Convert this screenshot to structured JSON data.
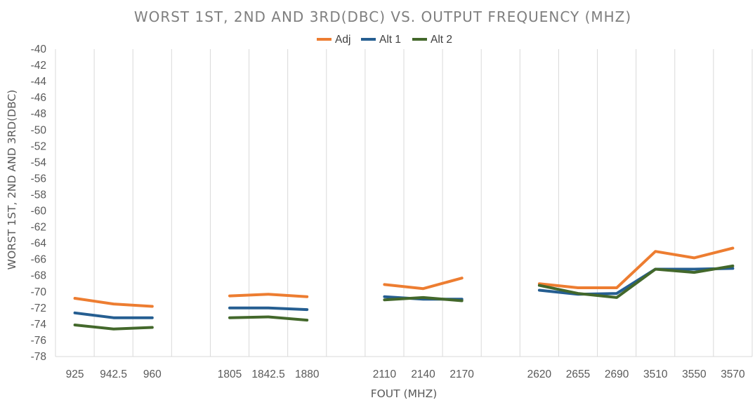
{
  "chart_data": {
    "type": "line",
    "title": "WORST 1ST, 2ND AND 3RD(DBC) VS. OUTPUT FREQUENCY (MHZ)",
    "xlabel": "FOUT (MHZ)",
    "ylabel": "WORST 1ST, 2ND AND 3RD(DBC)",
    "ylim": [
      -78,
      -40
    ],
    "yticks": [
      -40,
      -42,
      -44,
      -46,
      -48,
      -50,
      -52,
      -54,
      -56,
      -58,
      -60,
      -62,
      -64,
      -66,
      -68,
      -70,
      -72,
      -74,
      -76,
      -78
    ],
    "categories": [
      "925",
      "942.5",
      "960",
      "",
      "1805",
      "1842.5",
      "1880",
      "",
      "2110",
      "2140",
      "2170",
      "",
      "2620",
      "2655",
      "2690",
      "3510",
      "3550",
      "3570"
    ],
    "legend_position": "top",
    "grid": {
      "vertical": true,
      "horizontal": false
    },
    "series": [
      {
        "name": "Adj",
        "color": "#ed7d31",
        "values": [
          -70.8,
          -71.5,
          -71.8,
          null,
          -70.5,
          -70.3,
          -70.6,
          null,
          -69.1,
          -69.6,
          -68.3,
          null,
          -69.0,
          -69.5,
          -69.5,
          -65.0,
          -65.8,
          -64.6
        ]
      },
      {
        "name": "Alt 1",
        "color": "#255e91",
        "values": [
          -72.6,
          -73.2,
          -73.2,
          null,
          -72.0,
          -72.0,
          -72.2,
          null,
          -70.6,
          -70.9,
          -70.9,
          null,
          -69.8,
          -70.3,
          -70.2,
          -67.2,
          -67.2,
          -67.1
        ]
      },
      {
        "name": "Alt 2",
        "color": "#43682b",
        "values": [
          -74.1,
          -74.6,
          -74.4,
          null,
          -73.2,
          -73.1,
          -73.5,
          null,
          -71.0,
          -70.7,
          -71.1,
          null,
          -69.2,
          -70.2,
          -70.7,
          -67.2,
          -67.6,
          -66.8
        ]
      }
    ]
  }
}
